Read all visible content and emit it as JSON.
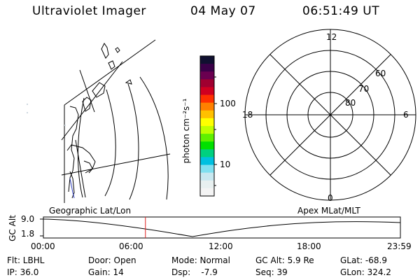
{
  "header": {
    "instrument": "Ultraviolet Imager",
    "date": "04 May 07",
    "time": "06:51:49 UT"
  },
  "colorbar": {
    "unit_label": "photon cm⁻²s⁻¹",
    "ticks": [
      "100",
      "10"
    ],
    "colors": [
      "#101030",
      "#3a0048",
      "#6a0050",
      "#a00030",
      "#d00020",
      "#ff3000",
      "#ff8000",
      "#ffc000",
      "#ffff00",
      "#c0ff00",
      "#60f000",
      "#00e000",
      "#00d080",
      "#00c0e0",
      "#80e0f0",
      "#c8e8f0",
      "#e8f0f0",
      "#f4f4f4"
    ]
  },
  "polar": {
    "mlt_top": "12",
    "mlt_left": "18",
    "mlt_right": "6",
    "mlt_bottom": "0",
    "lat_labels": [
      "60",
      "70",
      "80"
    ]
  },
  "map_labels": {
    "left": "Geographic Lat/Lon",
    "right": "Apex MLat/MLT"
  },
  "altitude_plot": {
    "ylabel": "GC Alt",
    "yticks": [
      "9.0",
      "1.8"
    ],
    "xticks": [
      "00:00",
      "06:00",
      "12:00",
      "18:00",
      "23:59"
    ],
    "marker_time_hours": 6.86,
    "marker_color": "#e02020"
  },
  "info": {
    "flt": "Flt: LBHL",
    "ip": "IP: 36.0",
    "door": "Door: Open",
    "gain": "Gain: 14",
    "mode": "Mode: Normal",
    "dsp": "Dsp:    -7.9",
    "gc_alt": "GC Alt: 5.9 Re",
    "seq": "Seq: 39",
    "glat": "GLat: -68.9",
    "glon": "GLon: 324.2"
  }
}
